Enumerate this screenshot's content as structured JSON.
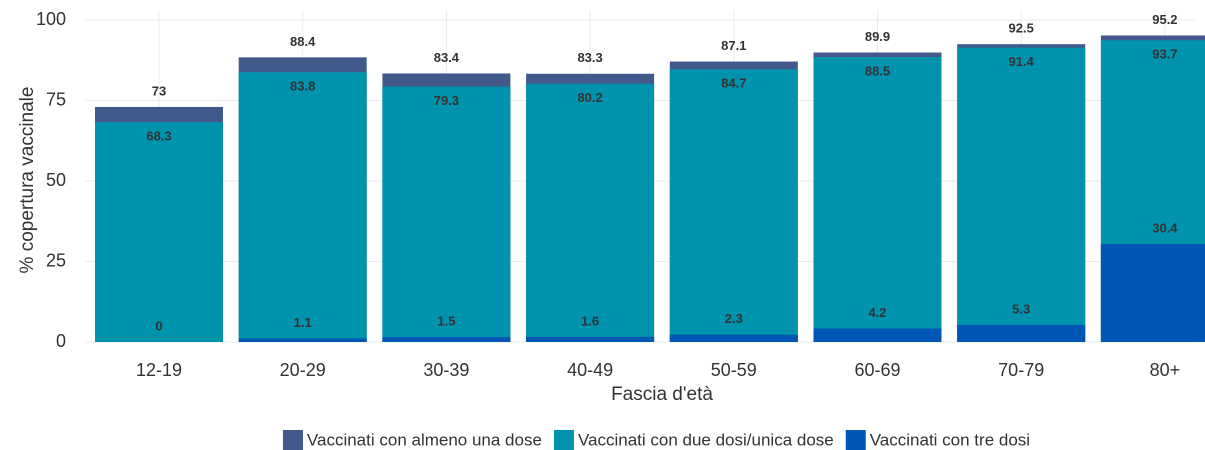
{
  "chart_data": {
    "type": "bar",
    "x_label": "Fascia d'età",
    "y_label": "% copertura vaccinale",
    "categories": [
      "12-19",
      "20-29",
      "30-39",
      "40-49",
      "50-59",
      "60-69",
      "70-79",
      "80+"
    ],
    "series": [
      {
        "name": "Vaccinati con almeno una dose",
        "color": "#42598c",
        "values": [
          73,
          88.4,
          83.4,
          83.3,
          87.1,
          89.9,
          92.5,
          95.2
        ]
      },
      {
        "name": "Vaccinati con due dosi/unica dose",
        "color": "#0093ae",
        "values": [
          68.3,
          83.8,
          79.3,
          80.2,
          84.7,
          88.5,
          91.4,
          93.7
        ]
      },
      {
        "name": "Vaccinati con tre dosi",
        "color": "#0057b3",
        "values": [
          0,
          1.1,
          1.5,
          1.6,
          2.3,
          4.2,
          5.3,
          30.4
        ]
      }
    ],
    "ylim": [
      0,
      100
    ],
    "yticks": [
      0,
      25,
      50,
      75,
      100
    ],
    "grid": true,
    "legend": "bottom"
  }
}
